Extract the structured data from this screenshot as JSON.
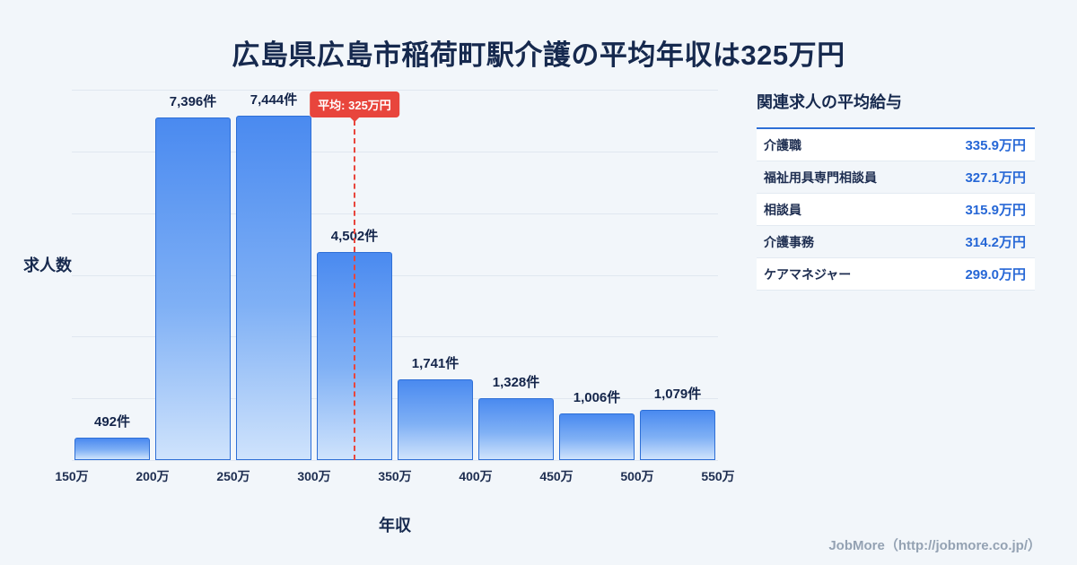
{
  "title": "広島県広島市稲荷町駅介護の平均年収は325万円",
  "chart_data": {
    "type": "bar",
    "title": "広島県広島市稲荷町駅介護の平均年収は325万円",
    "categories": [
      "150万",
      "200万",
      "250万",
      "300万",
      "350万",
      "400万",
      "450万",
      "500万",
      "550万"
    ],
    "values": [
      492,
      7396,
      7444,
      4502,
      1741,
      1328,
      1006,
      1079
    ],
    "value_labels": [
      "492件",
      "7,396件",
      "7,444件",
      "4,502件",
      "1,741件",
      "1,328件",
      "1,006件",
      "1,079件"
    ],
    "xlabel": "年収",
    "ylabel": "求人数",
    "x_range": [
      150,
      550
    ],
    "ylim": [
      0,
      8000
    ],
    "gridlines": 6,
    "grid": "horizontal",
    "legend_position": "none",
    "average": {
      "value": 325,
      "label": "平均: 325万円"
    }
  },
  "side_panel": {
    "title": "関連求人の平均給与",
    "rows": [
      {
        "label": "介護職",
        "value": "335.9万円"
      },
      {
        "label": "福祉用具専門相談員",
        "value": "327.1万円"
      },
      {
        "label": "相談員",
        "value": "315.9万円"
      },
      {
        "label": "介護事務",
        "value": "314.2万円"
      },
      {
        "label": "ケアマネジャー",
        "value": "299.0万円"
      }
    ]
  },
  "footer": {
    "credit": "JobMore（http://jobmore.co.jp/）"
  },
  "colors": {
    "background": "#f2f6fa",
    "bar_top": "#4a8af0",
    "bar_bottom": "#cfe3fc",
    "bar_border": "#2e6fd6",
    "average_line": "#e8453c",
    "value_text": "#2667d6",
    "title_text": "#16294e"
  }
}
